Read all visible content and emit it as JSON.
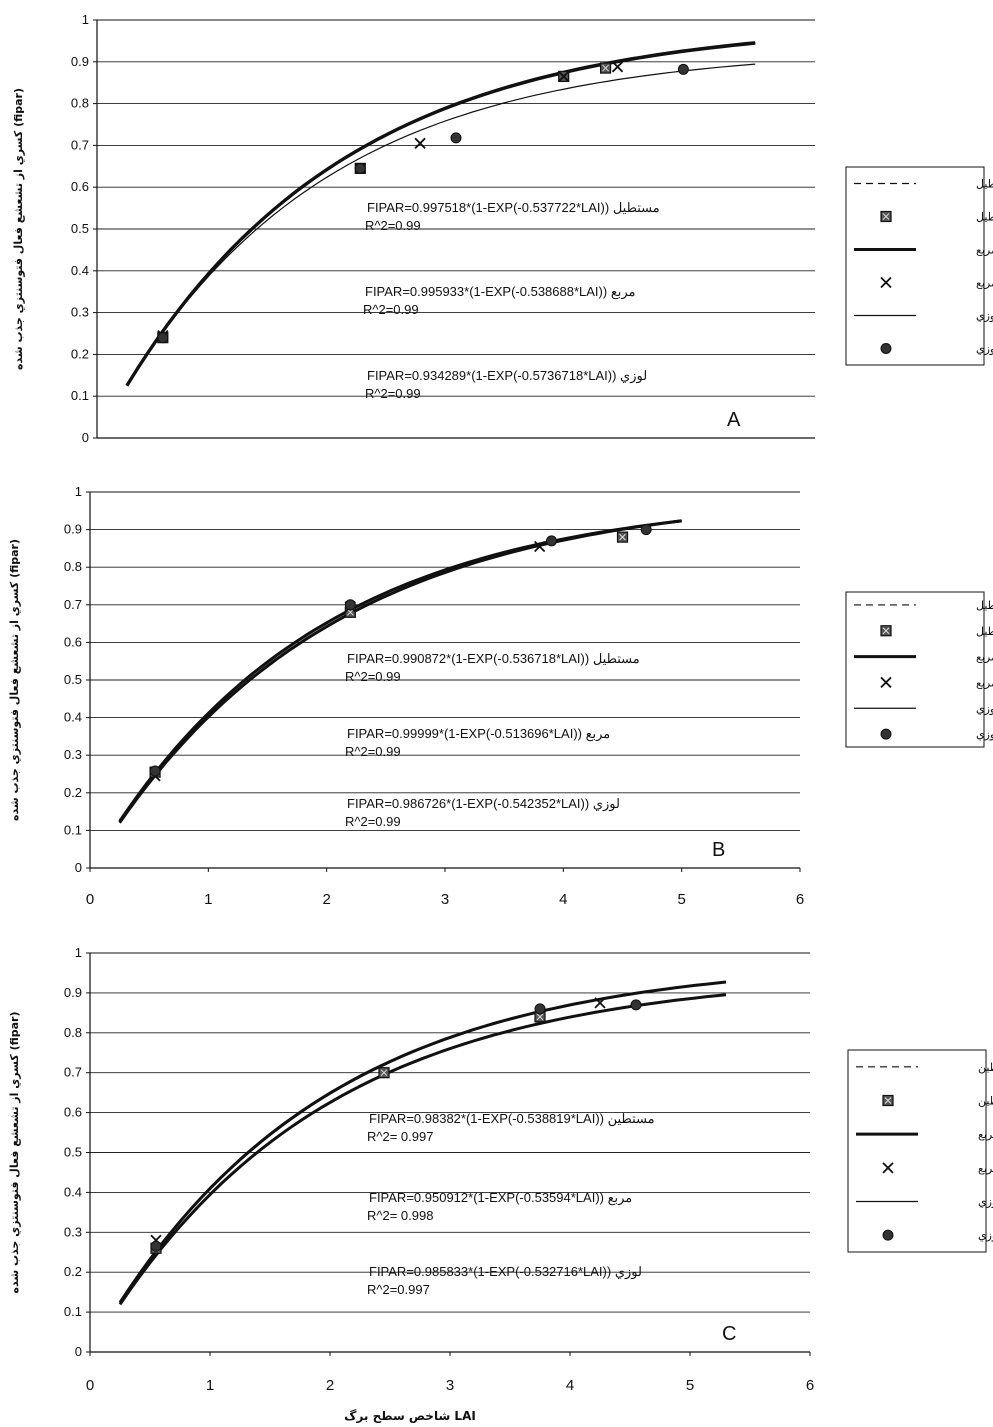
{
  "chart_data": [
    {
      "type": "scatter",
      "panel_label": "A",
      "ylabel": "(fipar) كسري از تشعشع فعال فتوسنتزي جذب شده",
      "ylim": [
        0,
        1
      ],
      "xlim": [
        0,
        6
      ],
      "yticks": [
        "0",
        "0.1",
        "0.2",
        "0.3",
        "0.4",
        "0.5",
        "0.6",
        "0.7",
        "0.8",
        "0.9",
        "1"
      ],
      "xticks": [],
      "grid": true,
      "legend_position": "right",
      "legend": [
        "مستطيل",
        "مستطيل",
        "مربع",
        "مربع",
        "لوزي",
        "لوزي"
      ],
      "series": [
        {
          "name": "مستطيل",
          "x": [
            0.55,
            2.2,
            3.9,
            4.25
          ],
          "y": [
            0.24,
            0.645,
            0.865,
            0.885
          ]
        },
        {
          "name": "مربع",
          "x": [
            0.55,
            2.2,
            2.7,
            3.9,
            4.35
          ],
          "y": [
            0.245,
            0.645,
            0.705,
            0.865,
            0.888
          ]
        },
        {
          "name": "لوزي",
          "x": [
            0.55,
            2.2,
            3.0,
            4.9
          ],
          "y": [
            0.24,
            0.645,
            0.718,
            0.882
          ]
        }
      ],
      "fit_lines": [
        {
          "name": "مستطيل",
          "a": 0.997518,
          "b": 0.537722,
          "x_range": [
            0.25,
            5.5
          ]
        },
        {
          "name": "مربع",
          "a": 0.995933,
          "b": 0.538688,
          "x_range": [
            0.25,
            5.5
          ]
        },
        {
          "name": "لوزي",
          "a": 0.934289,
          "b": 0.5736718,
          "x_range": [
            0.25,
            5.5
          ]
        }
      ],
      "annotations": [
        {
          "line1": "FIPAR=0.997518*(1-EXP(-0.537722*LAI)) مستطيل",
          "line2": "R^2=0.99"
        },
        {
          "line1": "FIPAR=0.995933*(1-EXP(-0.538688*LAI)) مربع",
          "line2": "R^2=0.99"
        },
        {
          "line1": "FIPAR=0.934289*(1-EXP(-0.5736718*LAI)) لوزي",
          "line2": "R^2=0.99"
        }
      ]
    },
    {
      "type": "scatter",
      "panel_label": "B",
      "ylabel": "(fipar) كسري از تشعشع فعال فتوسنتزي جذب شده",
      "ylim": [
        0,
        1
      ],
      "xlim": [
        0,
        6
      ],
      "yticks": [
        "0",
        "0.1",
        "0.2",
        "0.3",
        "0.4",
        "0.5",
        "0.6",
        "0.7",
        "0.8",
        "0.9",
        "1"
      ],
      "xticks": [
        "0",
        "1",
        "2",
        "3",
        "4",
        "5",
        "6"
      ],
      "grid": true,
      "legend_position": "right",
      "legend": [
        "مستطيل",
        "مستطيل",
        "مربع",
        "مربع",
        "لوزي",
        "لوزي"
      ],
      "series": [
        {
          "name": "مستطيل",
          "x": [
            0.55,
            2.2,
            4.5
          ],
          "y": [
            0.255,
            0.68,
            0.88
          ]
        },
        {
          "name": "مربع",
          "x": [
            0.55,
            2.2,
            3.8
          ],
          "y": [
            0.245,
            0.695,
            0.855
          ]
        },
        {
          "name": "لوزي",
          "x": [
            0.55,
            2.2,
            3.9,
            4.7
          ],
          "y": [
            0.258,
            0.7,
            0.87,
            0.9
          ]
        }
      ],
      "fit_lines": [
        {
          "name": "مستطيل",
          "a": 0.990872,
          "b": 0.536718,
          "x_range": [
            0.25,
            5.0
          ]
        },
        {
          "name": "مربع",
          "a": 0.99999,
          "b": 0.513696,
          "x_range": [
            0.25,
            5.0
          ]
        },
        {
          "name": "لوزي",
          "a": 0.986726,
          "b": 0.542352,
          "x_range": [
            0.25,
            5.0
          ]
        }
      ],
      "annotations": [
        {
          "line1": "FIPAR=0.990872*(1-EXP(-0.536718*LAI)) مستطيل",
          "line2": "R^2=0.99"
        },
        {
          "line1": "FIPAR=0.99999*(1-EXP(-0.513696*LAI)) مربع",
          "line2": "R^2=0.99"
        },
        {
          "line1": "FIPAR=0.986726*(1-EXP(-0.542352*LAI)) لوزي",
          "line2": "R^2=0.99"
        }
      ]
    },
    {
      "type": "scatter",
      "panel_label": "C",
      "ylabel": "(fipar) كسري از تشعشع فعال فتوسنتزي جذب شده",
      "xlabel": "شاخص سطح برگ LAI",
      "ylim": [
        0,
        1
      ],
      "xlim": [
        0,
        6
      ],
      "yticks": [
        "0",
        "0.1",
        "0.2",
        "0.3",
        "0.4",
        "0.5",
        "0.6",
        "0.7",
        "0.8",
        "0.9",
        "1"
      ],
      "xticks": [
        "0",
        "1",
        "2",
        "3",
        "4",
        "5",
        "6"
      ],
      "grid": true,
      "legend_position": "right",
      "legend": [
        "مستطين",
        "مستطين",
        "مربع",
        "مربع",
        "لوزي",
        "لوزي"
      ],
      "series": [
        {
          "name": "مستطين",
          "x": [
            0.55,
            2.45,
            3.75
          ],
          "y": [
            0.26,
            0.7,
            0.84
          ]
        },
        {
          "name": "مربع",
          "x": [
            0.55,
            4.25
          ],
          "y": [
            0.28,
            0.875
          ]
        },
        {
          "name": "لوزي",
          "x": [
            0.55,
            3.75,
            4.55
          ],
          "y": [
            0.265,
            0.86,
            0.87
          ]
        }
      ],
      "fit_lines": [
        {
          "name": "مستطين",
          "a": 0.98382,
          "b": 0.538819,
          "x_range": [
            0.25,
            5.3
          ]
        },
        {
          "name": "مربع",
          "a": 0.950912,
          "b": 0.53594,
          "x_range": [
            0.25,
            5.3
          ]
        },
        {
          "name": "لوزي",
          "a": 0.985833,
          "b": 0.532716,
          "x_range": [
            0.25,
            5.3
          ]
        }
      ],
      "annotations": [
        {
          "line1": "FIPAR=0.98382*(1-EXP(-0.538819*LAI)) مستطين",
          "line2": "R^2= 0.997"
        },
        {
          "line1": "FIPAR=0.950912*(1-EXP(-0.53594*LAI)) مربع",
          "line2": "R^2= 0.998"
        },
        {
          "line1": "FIPAR=0.985833*(1-EXP(-0.532716*LAI)) لوزي",
          "line2": "R^2=0.997"
        }
      ]
    }
  ]
}
